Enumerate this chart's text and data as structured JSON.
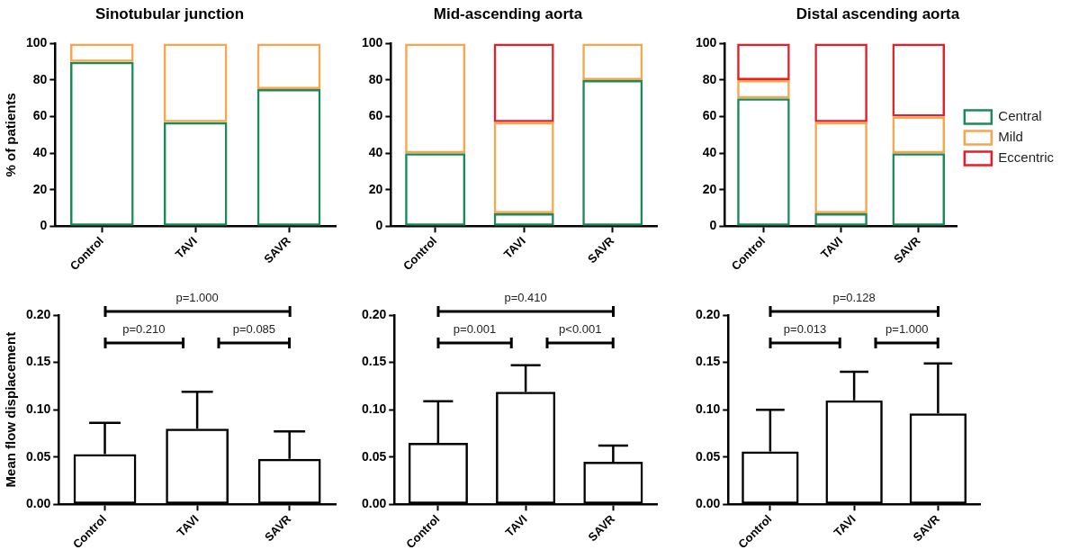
{
  "chart_data": [
    {
      "type": "bar",
      "title": "Sinotubular junction",
      "ylabel": "% of patients",
      "categories": [
        "Control",
        "TAVI",
        "SAVR"
      ],
      "stacked": true,
      "series": [
        {
          "color": "#1b8a5a",
          "values": [
            90,
            57,
            75
          ]
        },
        {
          "color": "#f8a54c",
          "values": [
            10,
            43,
            25
          ]
        }
      ],
      "ylim": [
        0,
        100
      ],
      "yticks": [
        0,
        20,
        40,
        60,
        80,
        100
      ]
    },
    {
      "type": "bar",
      "title": "Mid-ascending aorta",
      "categories": [
        "Control",
        "TAVI",
        "SAVR"
      ],
      "stacked": true,
      "series": [
        {
          "color": "#1b8a5a",
          "values": [
            40,
            7,
            80
          ]
        },
        {
          "color": "#f8a54c",
          "values": [
            60,
            50,
            20
          ]
        },
        {
          "color": "#ec1c24",
          "values": [
            null,
            43,
            null
          ]
        }
      ],
      "ylim": [
        0,
        100
      ],
      "yticks": [
        0,
        20,
        40,
        60,
        80,
        100
      ]
    },
    {
      "type": "bar",
      "title": "Distal ascending aorta",
      "categories": [
        "Control",
        "TAVI",
        "SAVR"
      ],
      "stacked": true,
      "series": [
        {
          "name": "Central",
          "color": "#1b8a5a",
          "values": [
            70,
            7,
            40
          ]
        },
        {
          "name": "Mild",
          "color": "#f8a54c",
          "values": [
            10,
            50,
            20
          ]
        },
        {
          "name": "Eccentric",
          "color": "#ec1c24",
          "values": [
            20,
            43,
            40
          ]
        }
      ],
      "ylim": [
        0,
        100
      ],
      "yticks": [
        0,
        20,
        40,
        60,
        80,
        100
      ],
      "legend": "right"
    },
    {
      "type": "bar",
      "ylabel": "Mean flow displacement",
      "categories": [
        "Control",
        "TAVI",
        "SAVR"
      ],
      "values": [
        0.053,
        0.08,
        0.048
      ],
      "errors": [
        [
          0.053,
          0.086
        ],
        [
          0.08,
          0.119
        ],
        [
          0.048,
          0.077
        ]
      ],
      "color": "#000000",
      "ylim": [
        0,
        0.2
      ],
      "yticks": [
        {
          "value": 0,
          "label": "0.00"
        },
        0.05,
        {
          "value": 0.1,
          "label": "0.10"
        },
        0.15,
        {
          "value": 0.2,
          "label": "0.20"
        }
      ],
      "annotations": [
        "p=1.000",
        "p=0.210",
        "p=0.085"
      ]
    },
    {
      "type": "bar",
      "categories": [
        "Control",
        "TAVI",
        "SAVR"
      ],
      "values": [
        0.065,
        0.119,
        0.045
      ],
      "errors": [
        [
          0.065,
          0.109
        ],
        [
          0.119,
          0.147
        ],
        [
          0.045,
          0.062
        ]
      ],
      "color": "#000000",
      "ylim": [
        0,
        0.2
      ],
      "yticks": [
        {
          "value": 0,
          "label": "0.00"
        },
        0.05,
        {
          "value": 0.1,
          "label": "0.10"
        },
        0.15,
        {
          "value": 0.2,
          "label": "0.20"
        }
      ],
      "annotations": [
        "p=0.410",
        "p=0.001",
        "p<0.001"
      ]
    },
    {
      "type": "bar",
      "categories": [
        "Control",
        "TAVI",
        "SAVR"
      ],
      "values": [
        0.056,
        0.11,
        0.096
      ],
      "errors": [
        [
          0.056,
          0.1
        ],
        [
          0.11,
          0.14
        ],
        [
          0.096,
          0.149
        ]
      ],
      "color": "#000000",
      "ylim": [
        0,
        0.2
      ],
      "yticks": [
        {
          "value": 0,
          "label": "0.00"
        },
        0.05,
        {
          "value": 0.1,
          "label": "0.10"
        },
        0.15,
        {
          "value": 0.2,
          "label": "0.20"
        }
      ],
      "annotations": [
        "p=0.128",
        "p=0.013",
        "p=1.000"
      ]
    }
  ]
}
